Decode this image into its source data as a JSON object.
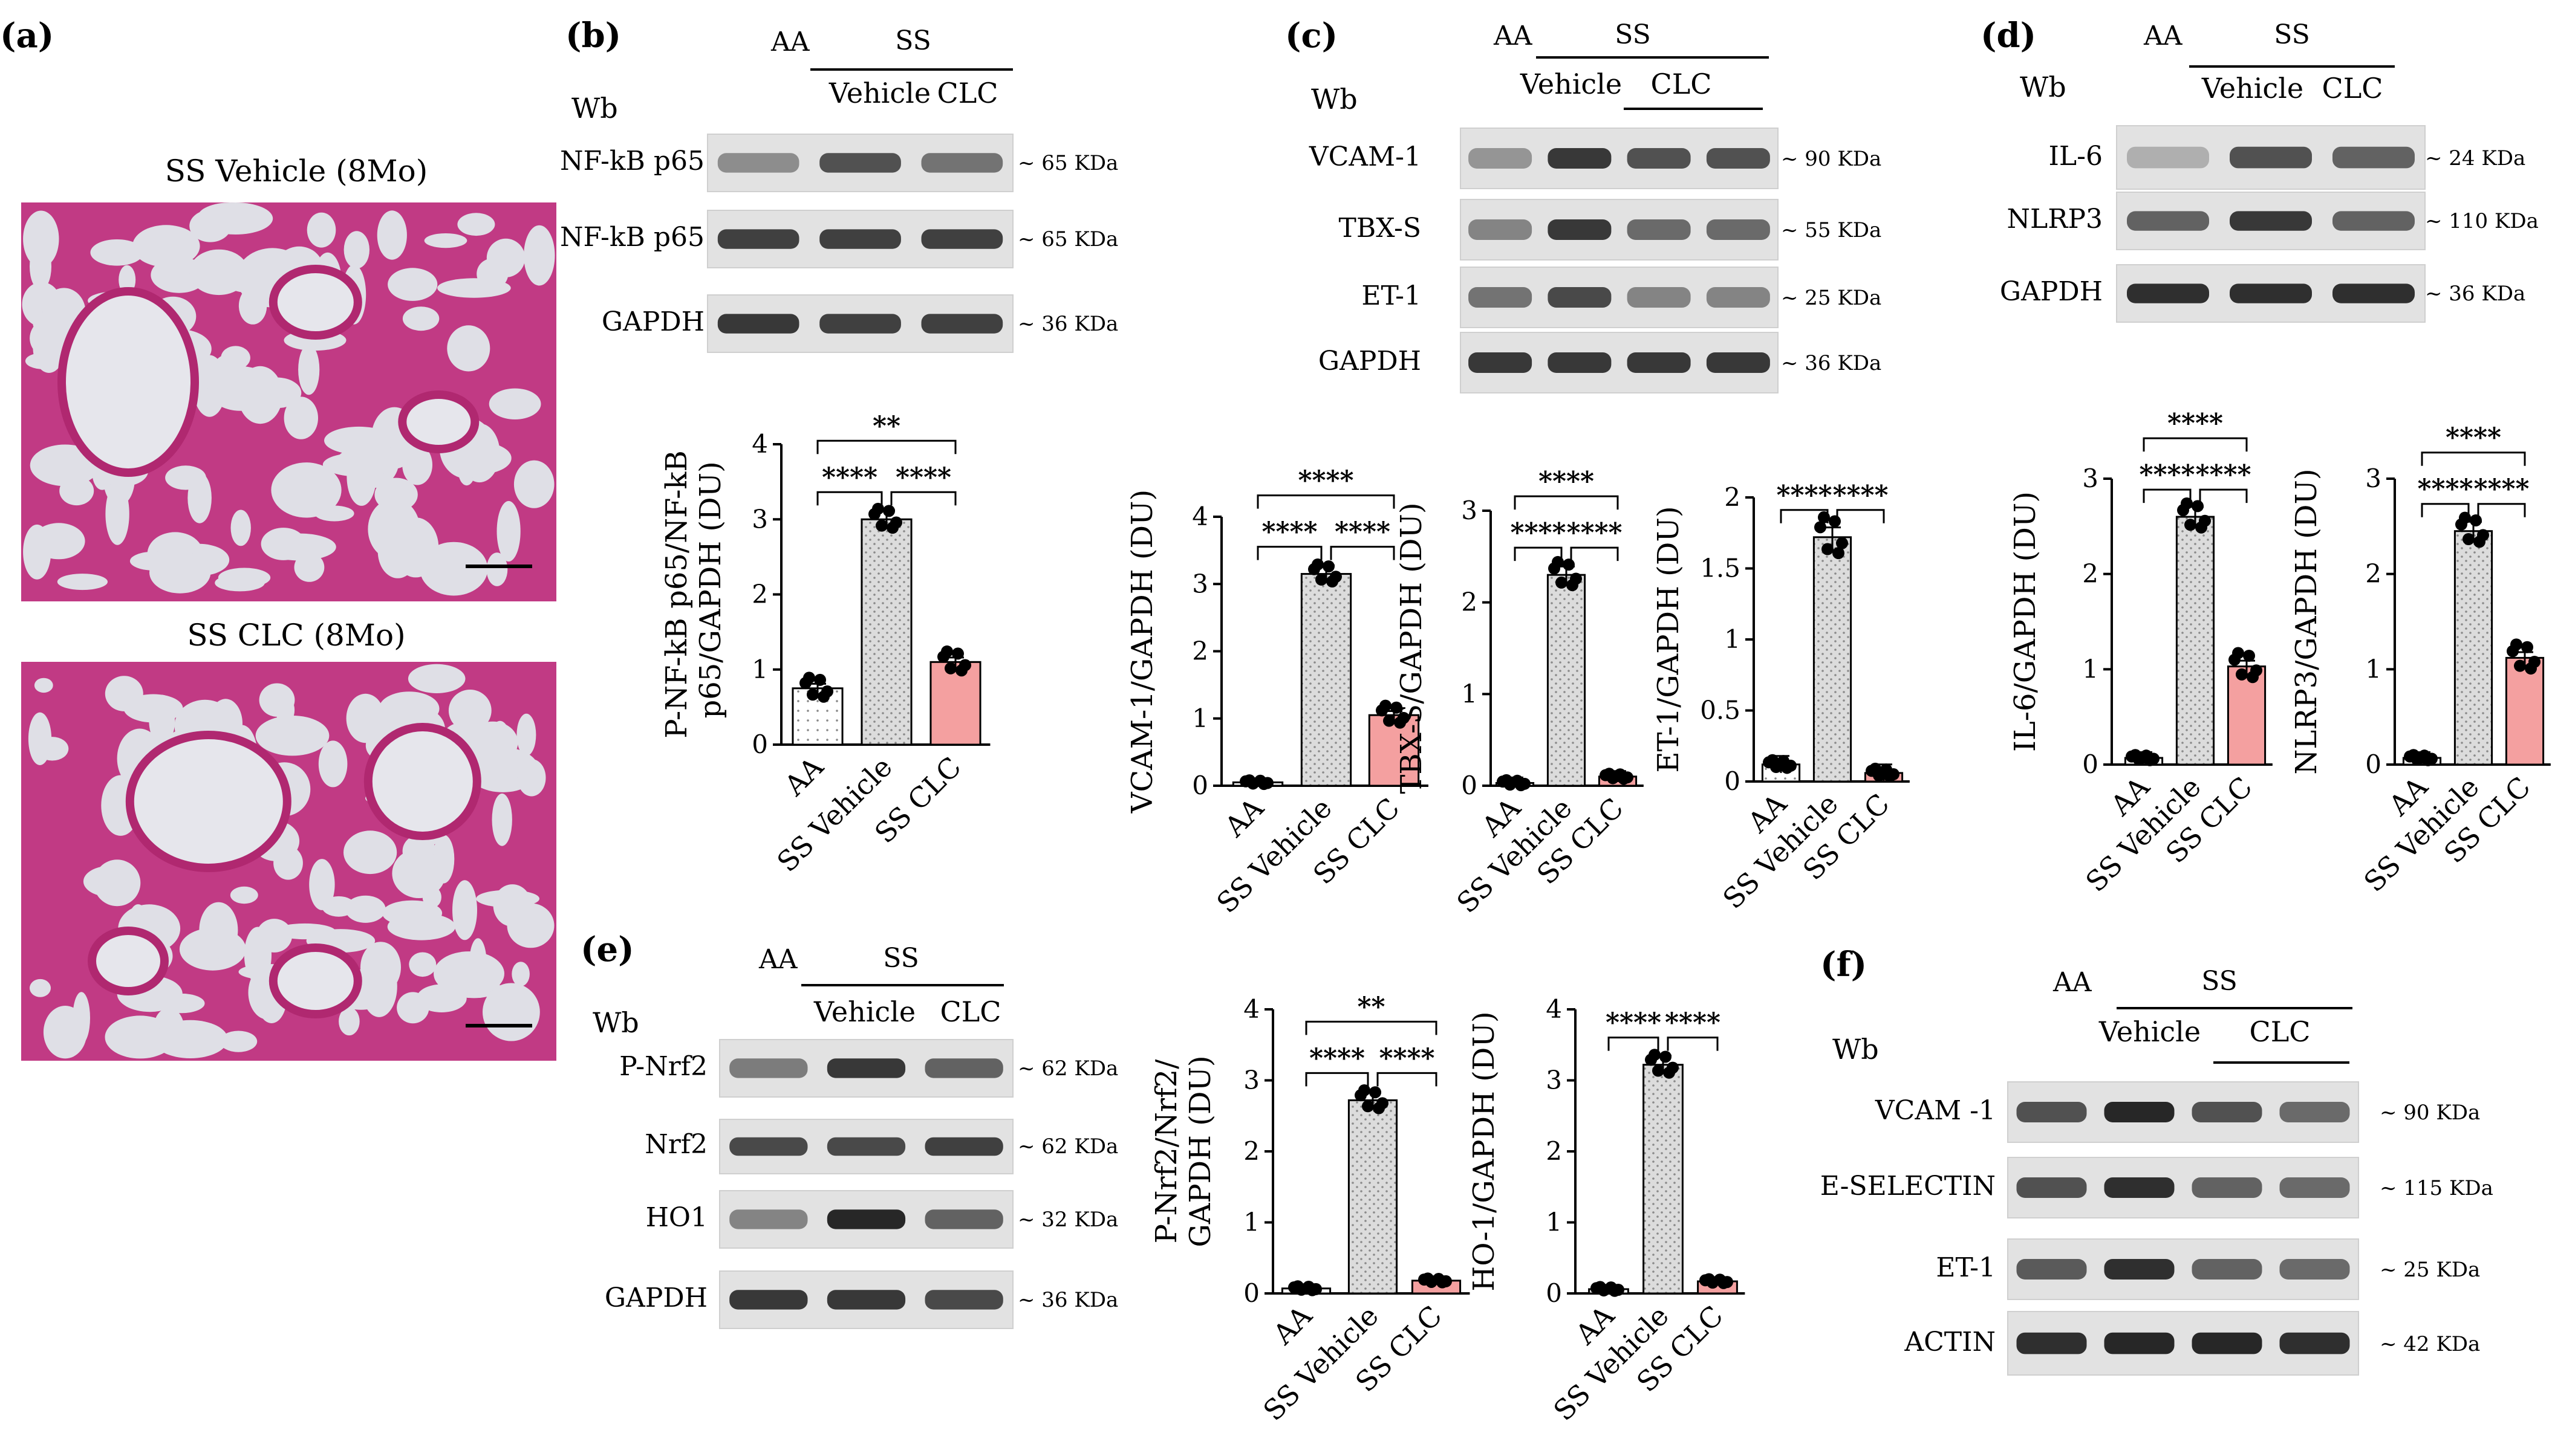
{
  "panels": {
    "a": {
      "label": "(a)",
      "images": [
        {
          "title": "SS  Vehicle (8Mo)"
        },
        {
          "title": "SS  CLC (8Mo)"
        }
      ]
    },
    "b": {
      "label": "(b)"
    },
    "c": {
      "label": "(c)"
    },
    "d": {
      "label": "(d)"
    },
    "e": {
      "label": "(e)"
    },
    "f": {
      "label": "(f)"
    }
  },
  "blots": {
    "b": {
      "aa": "AA",
      "ss": "SS",
      "vehicle": "Vehicle",
      "clc": "CLC",
      "wb": "Wb",
      "rows": [
        {
          "name": "NF-kB p65",
          "kda": "~ 65 KDa"
        },
        {
          "name": "NF-kB p65",
          "kda": "~ 65 KDa"
        },
        {
          "name": "GAPDH",
          "kda": "~ 36 KDa"
        }
      ]
    },
    "c": {
      "aa": "AA",
      "ss": "SS",
      "vehicle": "Vehicle",
      "clc": "CLC",
      "wb": "Wb",
      "rows": [
        {
          "name": "VCAM-1",
          "kda": "~ 90 KDa"
        },
        {
          "name": "TBX-S",
          "kda": "~ 55 KDa"
        },
        {
          "name": "ET-1",
          "kda": "~ 25 KDa"
        },
        {
          "name": "GAPDH",
          "kda": "~ 36 KDa"
        }
      ]
    },
    "d": {
      "aa": "AA",
      "ss": "SS",
      "vehicle": "Vehicle",
      "clc": "CLC",
      "wb": "Wb",
      "rows": [
        {
          "name": "IL-6",
          "kda": "~ 24 KDa"
        },
        {
          "name": "NLRP3",
          "kda": "~ 110 KDa"
        },
        {
          "name": "GAPDH",
          "kda": "~ 36 KDa"
        }
      ]
    },
    "e": {
      "aa": "AA",
      "ss": "SS",
      "vehicle": "Vehicle",
      "clc": "CLC",
      "wb": "Wb",
      "rows": [
        {
          "name": "P-Nrf2",
          "kda": "~ 62 KDa"
        },
        {
          "name": "Nrf2",
          "kda": "~ 62 KDa"
        },
        {
          "name": "HO1",
          "kda": "~ 32 KDa"
        },
        {
          "name": "GAPDH",
          "kda": "~ 36 KDa"
        }
      ]
    },
    "f": {
      "aa": "AA",
      "ss": "SS",
      "vehicle": "Vehicle",
      "clc": "CLC",
      "wb": "Wb",
      "rows": [
        {
          "name": "VCAM -1",
          "kda": "~ 90 KDa"
        },
        {
          "name": "E-SELECTIN",
          "kda": "~ 115 KDa"
        },
        {
          "name": "ET-1",
          "kda": "~ 25 KDa"
        },
        {
          "name": "ACTIN",
          "kda": "~ 42 KDa"
        }
      ]
    }
  },
  "colors": {
    "aa": "#ffffff",
    "vehicle": "#d4d4d4",
    "clc": "#f4a0a0",
    "tissue": "#c0307a",
    "background": "#d8d8d8"
  },
  "chart_data": [
    {
      "type": "bar",
      "panel": "b",
      "categories": [
        "AA",
        "SS Vehicle",
        "SS CLC"
      ],
      "values": [
        0.75,
        3.0,
        1.1
      ],
      "ylabel": "P-NF-kB p65/NF-kB p65/GAPDH (DU)",
      "ylim": [
        0,
        4
      ],
      "yticks": [
        0,
        1,
        2,
        3,
        4
      ],
      "significance": [
        {
          "pair": [
            "AA",
            "SS Vehicle"
          ],
          "label": "****"
        },
        {
          "pair": [
            "SS Vehicle",
            "SS CLC"
          ],
          "label": "****"
        },
        {
          "pair": [
            "AA",
            "SS CLC"
          ],
          "label": "**"
        }
      ]
    },
    {
      "type": "bar",
      "panel": "c",
      "categories": [
        "AA",
        "SS Vehicle",
        "SS CLC"
      ],
      "values": [
        0.05,
        3.15,
        1.05
      ],
      "ylabel": "VCAM-1/GAPDH (DU)",
      "ylim": [
        0,
        4
      ],
      "yticks": [
        0,
        1,
        2,
        3,
        4
      ],
      "significance": [
        {
          "pair": [
            "AA",
            "SS Vehicle"
          ],
          "label": "****"
        },
        {
          "pair": [
            "SS Vehicle",
            "SS CLC"
          ],
          "label": "****"
        },
        {
          "pair": [
            "AA",
            "SS CLC"
          ],
          "label": "****"
        }
      ]
    },
    {
      "type": "bar",
      "panel": "c",
      "categories": [
        "AA",
        "SS Vehicle",
        "SS CLC"
      ],
      "values": [
        0.03,
        2.3,
        0.1
      ],
      "ylabel": "TBX-S/GAPDH (DU)",
      "ylim": [
        0,
        3
      ],
      "yticks": [
        0,
        1,
        2,
        3
      ],
      "significance": [
        {
          "pair": [
            "AA",
            "SS Vehicle"
          ],
          "label": "****"
        },
        {
          "pair": [
            "SS Vehicle",
            "SS CLC"
          ],
          "label": "****"
        },
        {
          "pair": [
            "AA",
            "SS CLC"
          ],
          "label": "****"
        }
      ]
    },
    {
      "type": "bar",
      "panel": "c",
      "categories": [
        "AA",
        "SS Vehicle",
        "SS CLC"
      ],
      "values": [
        0.12,
        1.72,
        0.06
      ],
      "ylabel": "ET-1/GAPDH (DU)",
      "ylim": [
        0,
        2
      ],
      "yticks": [
        0,
        0.5,
        1,
        1.5,
        2
      ],
      "significance": [
        {
          "pair": [
            "AA",
            "SS Vehicle"
          ],
          "label": "****"
        },
        {
          "pair": [
            "SS Vehicle",
            "SS CLC"
          ],
          "label": "****"
        }
      ]
    },
    {
      "type": "bar",
      "panel": "d",
      "categories": [
        "AA",
        "SS Vehicle",
        "SS CLC"
      ],
      "values": [
        0.07,
        2.6,
        1.03
      ],
      "ylabel": "IL-6/GAPDH  (DU)",
      "ylim": [
        0,
        3
      ],
      "yticks": [
        0,
        1,
        2,
        3
      ],
      "significance": [
        {
          "pair": [
            "AA",
            "SS Vehicle"
          ],
          "label": "****"
        },
        {
          "pair": [
            "SS Vehicle",
            "SS CLC"
          ],
          "label": "****"
        },
        {
          "pair": [
            "AA",
            "SS CLC"
          ],
          "label": "****"
        }
      ]
    },
    {
      "type": "bar",
      "panel": "d",
      "categories": [
        "AA",
        "SS Vehicle",
        "SS CLC"
      ],
      "values": [
        0.07,
        2.45,
        1.12
      ],
      "ylabel": "NLRP3/GAPDH (DU)",
      "ylim": [
        0,
        3
      ],
      "yticks": [
        0,
        1,
        2,
        3
      ],
      "significance": [
        {
          "pair": [
            "AA",
            "SS Vehicle"
          ],
          "label": "****"
        },
        {
          "pair": [
            "SS Vehicle",
            "SS CLC"
          ],
          "label": "****"
        },
        {
          "pair": [
            "AA",
            "SS CLC"
          ],
          "label": "****"
        }
      ]
    },
    {
      "type": "bar",
      "panel": "e",
      "categories": [
        "AA",
        "SS Vehicle",
        "SS CLC"
      ],
      "values": [
        0.07,
        2.72,
        0.18
      ],
      "ylabel": "P-Nrf2/Nrf2/GAPDH (DU)",
      "ylim": [
        0,
        4
      ],
      "yticks": [
        0,
        1,
        2,
        3,
        4
      ],
      "significance": [
        {
          "pair": [
            "AA",
            "SS Vehicle"
          ],
          "label": "****"
        },
        {
          "pair": [
            "SS Vehicle",
            "SS CLC"
          ],
          "label": "****"
        },
        {
          "pair": [
            "AA",
            "SS CLC"
          ],
          "label": "**"
        }
      ]
    },
    {
      "type": "bar",
      "panel": "e",
      "categories": [
        "AA",
        "SS Vehicle",
        "SS CLC"
      ],
      "values": [
        0.06,
        3.22,
        0.17
      ],
      "ylabel": "HO-1/GAPDH (DU)",
      "ylim": [
        0,
        4
      ],
      "yticks": [
        0,
        1,
        2,
        3,
        4
      ],
      "significance": [
        {
          "pair": [
            "AA",
            "SS Vehicle"
          ],
          "label": "****"
        },
        {
          "pair": [
            "SS Vehicle",
            "SS CLC"
          ],
          "label": "****"
        }
      ]
    }
  ]
}
